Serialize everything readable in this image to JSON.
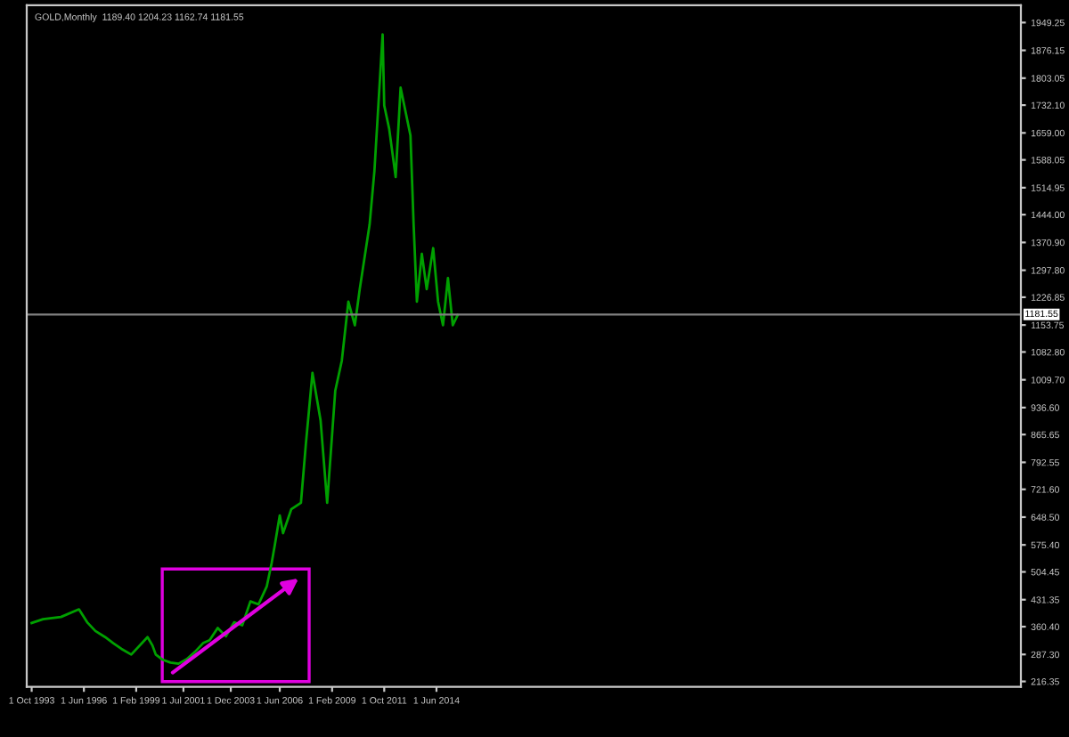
{
  "chart_data": {
    "type": "line",
    "title": "GOLD,Monthly  1189.40 1204.23 1162.74 1181.55",
    "x": [
      "1993-10",
      "1994-05",
      "1995-04",
      "1996-03",
      "1996-08",
      "1997-01",
      "1997-07",
      "1997-12",
      "1998-05",
      "1998-11",
      "1999-09",
      "1999-12",
      "2000-02",
      "2000-06",
      "2000-11",
      "2001-04",
      "2001-09",
      "2002-02",
      "2002-07",
      "2002-11",
      "2003-04",
      "2003-09",
      "2004-02",
      "2004-07",
      "2004-12",
      "2005-05",
      "2005-10",
      "2006-01",
      "2006-03",
      "2006-06",
      "2006-08",
      "2007-01",
      "2007-07",
      "2007-10",
      "2008-02",
      "2008-07",
      "2008-11",
      "2009-04",
      "2009-08",
      "2009-12",
      "2010-04",
      "2010-07",
      "2011-01",
      "2011-04",
      "2011-09",
      "2011-10",
      "2012-01",
      "2012-05",
      "2012-08",
      "2013-02",
      "2013-04",
      "2013-06",
      "2013-09",
      "2013-12",
      "2014-04",
      "2014-07",
      "2014-10",
      "2015-01",
      "2015-04",
      "2015-07"
    ],
    "series": [
      {
        "color": "#00a000",
        "values": [
          370,
          380,
          386,
          406,
          372,
          349,
          333,
          317,
          302,
          287,
          333,
          311,
          287,
          274,
          266,
          263,
          275,
          294,
          317,
          325,
          357,
          335,
          372,
          364,
          427,
          419,
          466,
          528,
          575,
          653,
          606,
          669,
          686,
          841,
          1028,
          903,
          686,
          981,
          1060,
          1215,
          1153,
          1248,
          1418,
          1559,
          1918,
          1731,
          1670,
          1543,
          1778,
          1652,
          1418,
          1215,
          1341,
          1248,
          1356,
          1215,
          1153,
          1277,
          1153,
          1180
        ]
      }
    ],
    "xlim": [
      "1993-07",
      "2044-04"
    ],
    "xticks": [
      {
        "value": "1993-10-01",
        "label": "1 Oct 1993"
      },
      {
        "value": "1996-06-01",
        "label": "1 Jun 1996"
      },
      {
        "value": "1999-02-01",
        "label": "1 Feb 1999"
      },
      {
        "value": "2001-07-01",
        "label": "1 Jul 2001"
      },
      {
        "value": "2003-12-01",
        "label": "1 Dec 2003"
      },
      {
        "value": "2006-06-01",
        "label": "1 Jun 2006"
      },
      {
        "value": "2009-02-01",
        "label": "1 Feb 2009"
      },
      {
        "value": "2011-10-01",
        "label": "1 Oct 2011"
      },
      {
        "value": "2014-06-01",
        "label": "1 Jun 2014"
      }
    ],
    "ylim": [
      202,
      1995
    ],
    "yticks": [
      {
        "value": 216.35,
        "label": "216.35"
      },
      {
        "value": 287.3,
        "label": "287.30"
      },
      {
        "value": 360.4,
        "label": "360.40"
      },
      {
        "value": 431.35,
        "label": "431.35"
      },
      {
        "value": 504.45,
        "label": "504.45"
      },
      {
        "value": 575.4,
        "label": "575.40"
      },
      {
        "value": 648.5,
        "label": "648.50"
      },
      {
        "value": 721.6,
        "label": "721.60"
      },
      {
        "value": 792.55,
        "label": "792.55"
      },
      {
        "value": 865.65,
        "label": "865.65"
      },
      {
        "value": 936.6,
        "label": "936.60"
      },
      {
        "value": 1009.7,
        "label": "1009.70"
      },
      {
        "value": 1082.8,
        "label": "1082.80"
      },
      {
        "value": 1153.75,
        "label": "1153.75"
      },
      {
        "value": 1226.85,
        "label": "1226.85"
      },
      {
        "value": 1297.8,
        "label": "1297.80"
      },
      {
        "value": 1370.9,
        "label": "1370.90"
      },
      {
        "value": 1444,
        "label": "1444.00"
      },
      {
        "value": 1514.95,
        "label": "1514.95"
      },
      {
        "value": 1588.05,
        "label": "1588.05"
      },
      {
        "value": 1659,
        "label": "1659.00"
      },
      {
        "value": 1732.1,
        "label": "1732.10"
      },
      {
        "value": 1803.05,
        "label": "1803.05"
      },
      {
        "value": 1876.15,
        "label": "1876.15"
      },
      {
        "value": 1949.25,
        "label": "1949.25"
      }
    ],
    "ref_lines": [
      {
        "axis": "y",
        "value": 1181.55,
        "label": "1181.55",
        "color": "#808080"
      }
    ],
    "grid": false,
    "legend": false
  }
}
